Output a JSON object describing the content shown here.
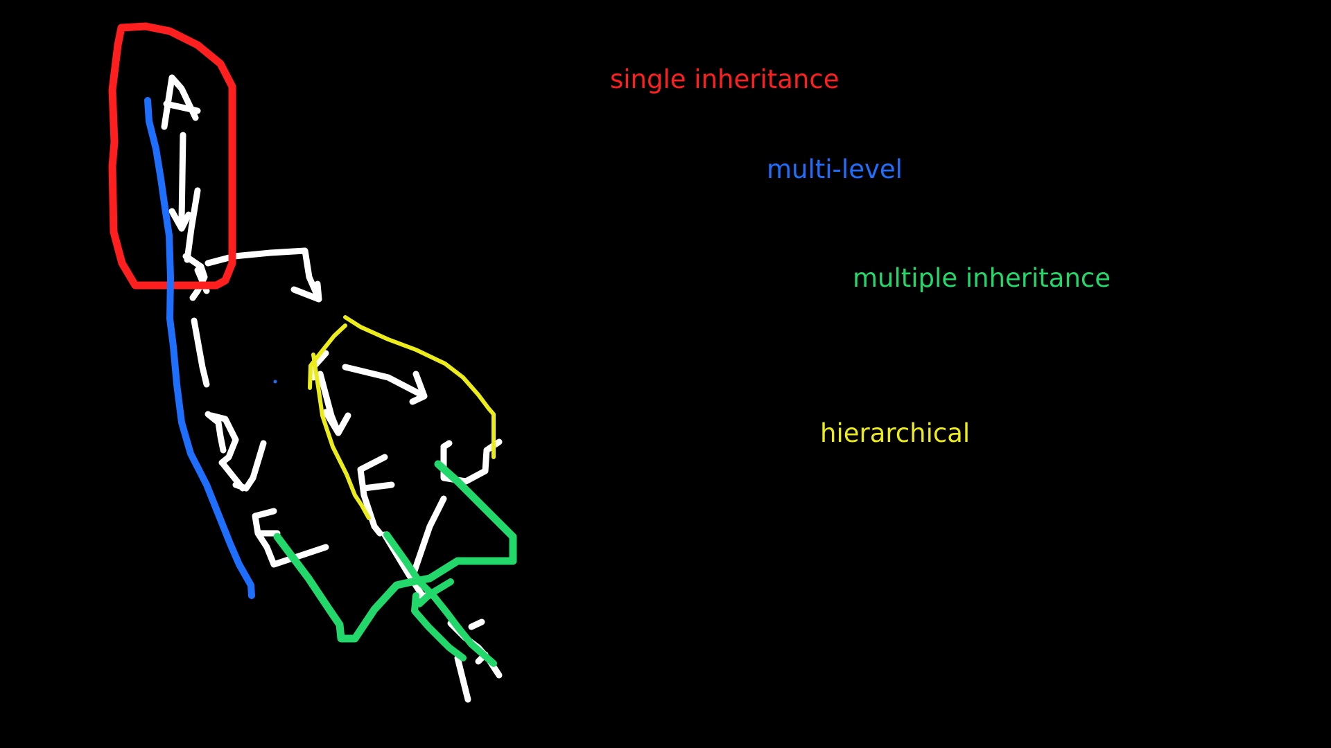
{
  "legend": {
    "single": {
      "text": "single inheritance",
      "color": "#ff1f1f"
    },
    "multilevel": {
      "text": "multi-level",
      "color": "#1f6fff"
    },
    "multiple": {
      "text": "multiple inheritance",
      "color": "#22d86a"
    },
    "hierarchical": {
      "text": "hierarchical",
      "color": "#ecec1a"
    }
  },
  "nodes": [
    "A",
    "B",
    "C",
    "D",
    "E",
    "F",
    "G",
    "H"
  ],
  "ink": {
    "white": "#ffffff"
  }
}
